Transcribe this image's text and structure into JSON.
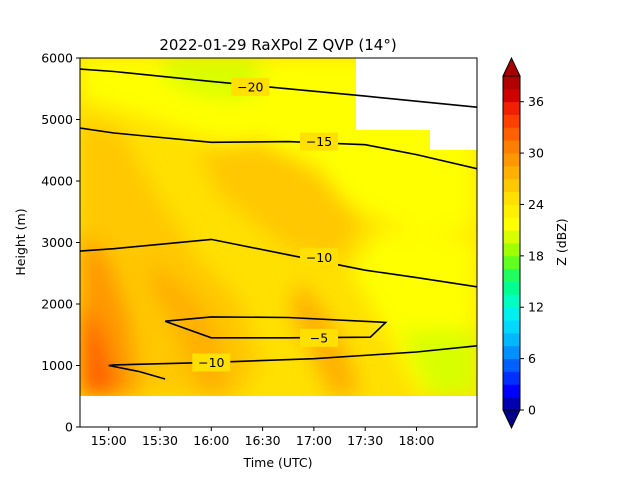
{
  "chart_data": {
    "type": "heatmap",
    "title": "2022-01-29 RaXPol Z QVP (14°)",
    "xlabel": "Time (UTC)",
    "ylabel": "Height (m)",
    "x_ticks": [
      "15:00",
      "15:30",
      "16:00",
      "16:30",
      "17:00",
      "17:30",
      "18:00"
    ],
    "x_tick_hours": [
      15.0,
      15.5,
      16.0,
      16.5,
      17.0,
      17.5,
      18.0
    ],
    "xlim_hours": [
      14.72,
      18.59
    ],
    "y_ticks": [
      0,
      1000,
      2000,
      3000,
      4000,
      5000,
      6000
    ],
    "ylim": [
      0,
      6000
    ],
    "data_height_range": [
      500,
      6000
    ],
    "colorbar": {
      "label": "Z (dBZ)",
      "range": [
        0,
        39
      ],
      "ticks": [
        0,
        6,
        12,
        18,
        24,
        30,
        36
      ],
      "extend": "both",
      "levels": [
        0,
        1.5,
        3,
        4.5,
        6,
        7.5,
        9,
        10.5,
        12,
        13.5,
        15,
        16.5,
        18,
        19.5,
        21,
        22.5,
        24,
        25.5,
        27,
        28.5,
        30,
        31.5,
        33,
        34.5,
        36,
        37.5,
        39
      ],
      "colors": [
        "#0000b0",
        "#0000ff",
        "#0030ff",
        "#0060ff",
        "#0090ff",
        "#00b8ff",
        "#00d8ff",
        "#00f0f0",
        "#00ffc0",
        "#00ff90",
        "#20ff60",
        "#60ff20",
        "#a0ff00",
        "#d8ff00",
        "#ffff00",
        "#fff000",
        "#ffe000",
        "#ffc800",
        "#ffb000",
        "#ff9800",
        "#ff8000",
        "#ff6000",
        "#ff4000",
        "#f02000",
        "#d00000",
        "#b00000"
      ],
      "under_color": "#00008b",
      "over_color": "#a80000"
    },
    "reflectivity_field": {
      "approx_range_dbz": [
        17,
        34
      ],
      "low_level_max_dbz": 34,
      "upper_level_min_dbz": 18
    },
    "temperature_contours": [
      {
        "label": "−20",
        "points": [
          [
            14.72,
            5820
          ],
          [
            15.05,
            5780
          ],
          [
            16.0,
            5620
          ],
          [
            16.75,
            5500
          ],
          [
            17.5,
            5380
          ],
          [
            18.59,
            5200
          ]
        ],
        "label_at": [
          16.38,
          5530
        ]
      },
      {
        "label": "−15",
        "points": [
          [
            14.72,
            4860
          ],
          [
            15.05,
            4780
          ],
          [
            16.0,
            4630
          ],
          [
            16.75,
            4640
          ],
          [
            17.5,
            4590
          ],
          [
            18.0,
            4430
          ],
          [
            18.59,
            4200
          ]
        ],
        "label_at": [
          17.05,
          4640
        ]
      },
      {
        "label": "−10",
        "points": [
          [
            14.72,
            2860
          ],
          [
            15.05,
            2900
          ],
          [
            16.0,
            3050
          ],
          [
            16.75,
            2800
          ],
          [
            17.5,
            2550
          ],
          [
            18.0,
            2430
          ],
          [
            18.59,
            2280
          ]
        ],
        "label_at": [
          17.05,
          2760
        ]
      },
      {
        "label": "−5",
        "points": [
          [
            15.55,
            1720
          ],
          [
            16.0,
            1790
          ],
          [
            16.75,
            1780
          ],
          [
            17.7,
            1700
          ],
          [
            17.55,
            1460
          ],
          [
            16.75,
            1450
          ],
          [
            16.0,
            1450
          ],
          [
            15.55,
            1720
          ]
        ],
        "label_at": [
          17.05,
          1450
        ]
      },
      {
        "label": "−10",
        "points": [
          [
            15.55,
            780
          ],
          [
            15.3,
            900
          ],
          [
            15.0,
            1000
          ],
          [
            15.05,
            1010
          ],
          [
            16.0,
            1050
          ],
          [
            17.0,
            1110
          ],
          [
            18.0,
            1220
          ],
          [
            18.59,
            1320
          ]
        ],
        "label_at": [
          16.0,
          1050
        ]
      }
    ]
  }
}
